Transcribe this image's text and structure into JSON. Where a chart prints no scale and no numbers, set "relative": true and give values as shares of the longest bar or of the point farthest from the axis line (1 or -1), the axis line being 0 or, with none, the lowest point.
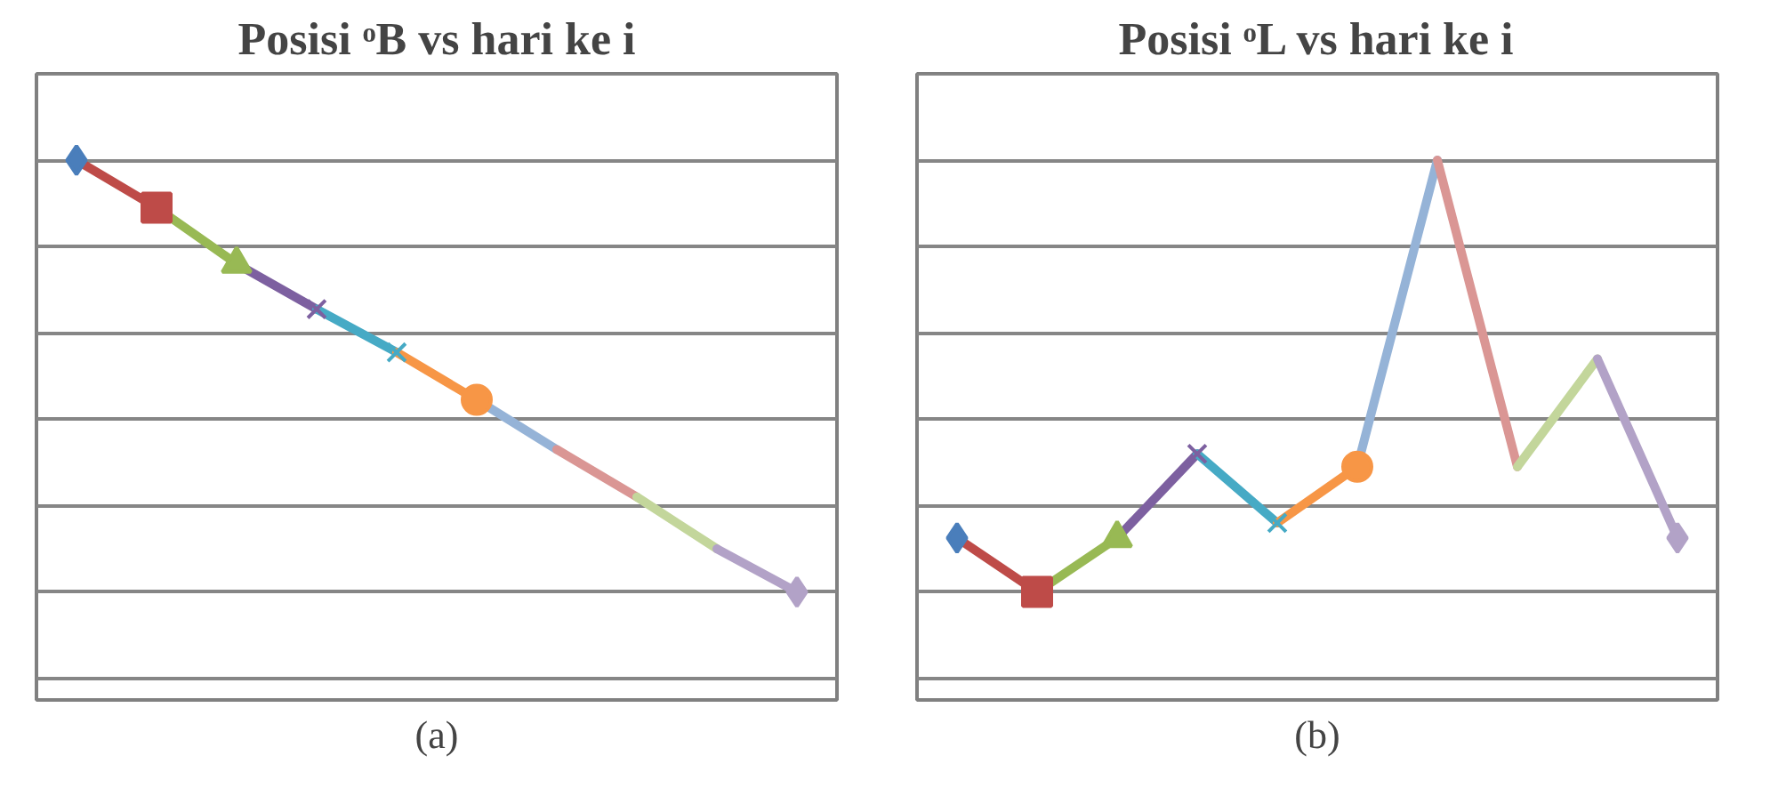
{
  "chart_data": [
    {
      "type": "line",
      "title": "Posisi ᵒB vs hari ke i",
      "relative": true,
      "grid": "y",
      "categories": [
        null,
        null,
        null,
        null,
        null,
        null,
        null,
        null,
        null,
        null
      ],
      "series": [
        {
          "color": "#4a7ebb",
          "marker": "diamond",
          "values": [
            1.0,
            null,
            null,
            null,
            null,
            null,
            null,
            null,
            null,
            null
          ]
        },
        {
          "color": "#be4b48",
          "marker": "square",
          "values": [
            1.0,
            0.89,
            null,
            null,
            null,
            null,
            null,
            null,
            null,
            null
          ]
        },
        {
          "color": "#98b954",
          "marker": "triangle",
          "values": [
            null,
            0.89,
            0.76,
            null,
            null,
            null,
            null,
            null,
            null,
            null
          ]
        },
        {
          "color": "#7d60a0",
          "marker": "cross",
          "values": [
            null,
            null,
            0.76,
            0.655,
            null,
            null,
            null,
            null,
            null,
            null
          ]
        },
        {
          "color": "#46aac5",
          "marker": "cross",
          "values": [
            null,
            null,
            null,
            0.655,
            0.555,
            null,
            null,
            null,
            null,
            null
          ]
        },
        {
          "color": "#f79646",
          "marker": "circle",
          "values": [
            null,
            null,
            null,
            null,
            0.555,
            0.445,
            null,
            null,
            null,
            null
          ]
        },
        {
          "color": "#95b3d7",
          "marker": "none",
          "values": [
            null,
            null,
            null,
            null,
            null,
            0.445,
            0.33,
            null,
            null,
            null
          ]
        },
        {
          "color": "#da9694",
          "marker": "none",
          "values": [
            null,
            null,
            null,
            null,
            null,
            null,
            0.33,
            0.22,
            null,
            null
          ]
        },
        {
          "color": "#c3d69b",
          "marker": "none",
          "values": [
            null,
            null,
            null,
            null,
            null,
            null,
            null,
            0.22,
            0.1,
            null
          ]
        },
        {
          "color": "#b2a2c7",
          "marker": "diamond",
          "values": [
            null,
            null,
            null,
            null,
            null,
            null,
            null,
            null,
            0.1,
            0.0
          ]
        }
      ],
      "annotations": [
        "(a)"
      ]
    },
    {
      "type": "line",
      "title": "Posisi ᵒL vs hari ke i",
      "relative": true,
      "grid": "y",
      "categories": [
        null,
        null,
        null,
        null,
        null,
        null,
        null,
        null,
        null,
        null
      ],
      "series": [
        {
          "color": "#4a7ebb",
          "marker": "diamond",
          "values": [
            0.125,
            null,
            null,
            null,
            null,
            null,
            null,
            null,
            null,
            null
          ]
        },
        {
          "color": "#be4b48",
          "marker": "square",
          "values": [
            0.125,
            0.0,
            null,
            null,
            null,
            null,
            null,
            null,
            null,
            null
          ]
        },
        {
          "color": "#98b954",
          "marker": "triangle",
          "values": [
            null,
            0.0,
            0.125,
            null,
            null,
            null,
            null,
            null,
            null,
            null
          ]
        },
        {
          "color": "#7d60a0",
          "marker": "cross",
          "values": [
            null,
            null,
            0.125,
            0.32,
            null,
            null,
            null,
            null,
            null,
            null
          ]
        },
        {
          "color": "#46aac5",
          "marker": "cross",
          "values": [
            null,
            null,
            null,
            0.32,
            0.16,
            null,
            null,
            null,
            null,
            null
          ]
        },
        {
          "color": "#f79646",
          "marker": "circle",
          "values": [
            null,
            null,
            null,
            null,
            0.16,
            0.29,
            null,
            null,
            null,
            null
          ]
        },
        {
          "color": "#95b3d7",
          "marker": "none",
          "values": [
            null,
            null,
            null,
            null,
            null,
            0.29,
            1.0,
            null,
            null,
            null
          ]
        },
        {
          "color": "#da9694",
          "marker": "none",
          "values": [
            null,
            null,
            null,
            null,
            null,
            null,
            1.0,
            0.29,
            null,
            null
          ]
        },
        {
          "color": "#c3d69b",
          "marker": "none",
          "values": [
            null,
            null,
            null,
            null,
            null,
            null,
            null,
            0.29,
            0.54,
            null
          ]
        },
        {
          "color": "#b2a2c7",
          "marker": "diamond",
          "values": [
            null,
            null,
            null,
            null,
            null,
            null,
            null,
            null,
            0.54,
            0.125
          ]
        }
      ],
      "annotations": [
        "(b)"
      ]
    }
  ]
}
